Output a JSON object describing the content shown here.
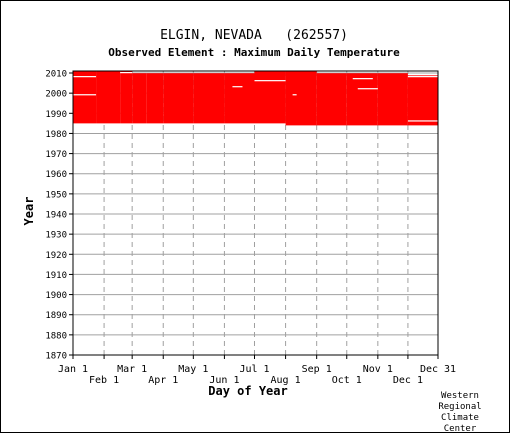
{
  "header": {
    "title": "ELGIN, NEVADA   (262557)",
    "subtitle": "Observed Element : Maximum Daily Temperature"
  },
  "credit": [
    "Western",
    "Regional",
    "Climate",
    "Center"
  ],
  "colors": {
    "data": "#ff0000",
    "grid": "#a0a0a0",
    "axis": "#000000",
    "background": "#ffffff"
  },
  "chart_data": {
    "type": "heatmap",
    "title": "ELGIN, NEVADA   (262557)",
    "subtitle": "Observed Element : Maximum Daily Temperature",
    "xlabel": "Day of Year",
    "ylabel": "Year",
    "x_tick_labels_top_row": [
      "Jan 1",
      "Mar 1",
      "May 1",
      "Jul 1",
      "Sep 1",
      "Nov 1",
      "Dec 31"
    ],
    "x_tick_labels_bottom_row": [
      "Feb 1",
      "Apr 1",
      "Jun 1",
      "Aug 1",
      "Oct 1",
      "Dec 1"
    ],
    "x_ticks_doy": [
      1,
      32,
      60,
      91,
      121,
      152,
      182,
      213,
      244,
      274,
      305,
      335,
      365
    ],
    "xlim": [
      1,
      365
    ],
    "ylim": [
      1870,
      2011
    ],
    "y_ticks": [
      1870,
      1880,
      1890,
      1900,
      1910,
      1920,
      1930,
      1940,
      1950,
      1960,
      1970,
      1980,
      1990,
      2000,
      2010
    ],
    "grid": true,
    "legend": "none",
    "coverage_segments": [
      {
        "start_doy": 1,
        "end_doy": 24,
        "first_year": 1985,
        "last_year": 2010
      },
      {
        "start_doy": 24,
        "end_doy": 48,
        "first_year": 1985,
        "last_year": 2010
      },
      {
        "start_doy": 48,
        "end_doy": 60,
        "first_year": 1985,
        "last_year": 2010
      },
      {
        "start_doy": 60,
        "end_doy": 74,
        "first_year": 1985,
        "last_year": 2009
      },
      {
        "start_doy": 74,
        "end_doy": 91,
        "first_year": 1985,
        "last_year": 2009
      },
      {
        "start_doy": 91,
        "end_doy": 121,
        "first_year": 1985,
        "last_year": 2009
      },
      {
        "start_doy": 121,
        "end_doy": 152,
        "first_year": 1985,
        "last_year": 2009
      },
      {
        "start_doy": 152,
        "end_doy": 182,
        "first_year": 1985,
        "last_year": 2009
      },
      {
        "start_doy": 182,
        "end_doy": 213,
        "first_year": 1985,
        "last_year": 2010
      },
      {
        "start_doy": 213,
        "end_doy": 244,
        "first_year": 1984,
        "last_year": 2010
      },
      {
        "start_doy": 244,
        "end_doy": 274,
        "first_year": 1984,
        "last_year": 2009
      },
      {
        "start_doy": 274,
        "end_doy": 305,
        "first_year": 1984,
        "last_year": 2009
      },
      {
        "start_doy": 305,
        "end_doy": 335,
        "first_year": 1984,
        "last_year": 2009
      },
      {
        "start_doy": 335,
        "end_doy": 365,
        "first_year": 1984,
        "last_year": 2008
      }
    ],
    "missing_records": [
      {
        "start_doy": 1,
        "end_doy": 24,
        "year": 2008
      },
      {
        "start_doy": 1,
        "end_doy": 24,
        "year": 1999
      },
      {
        "start_doy": 48,
        "end_doy": 60,
        "year": 2010
      },
      {
        "start_doy": 182,
        "end_doy": 213,
        "year": 2006
      },
      {
        "start_doy": 160,
        "end_doy": 170,
        "year": 2003
      },
      {
        "start_doy": 280,
        "end_doy": 300,
        "year": 2007
      },
      {
        "start_doy": 285,
        "end_doy": 305,
        "year": 2002
      },
      {
        "start_doy": 335,
        "end_doy": 365,
        "year": 2009
      },
      {
        "start_doy": 335,
        "end_doy": 365,
        "year": 2008
      },
      {
        "start_doy": 335,
        "end_doy": 365,
        "year": 1986
      },
      {
        "start_doy": 220,
        "end_doy": 224,
        "year": 1999
      }
    ]
  }
}
